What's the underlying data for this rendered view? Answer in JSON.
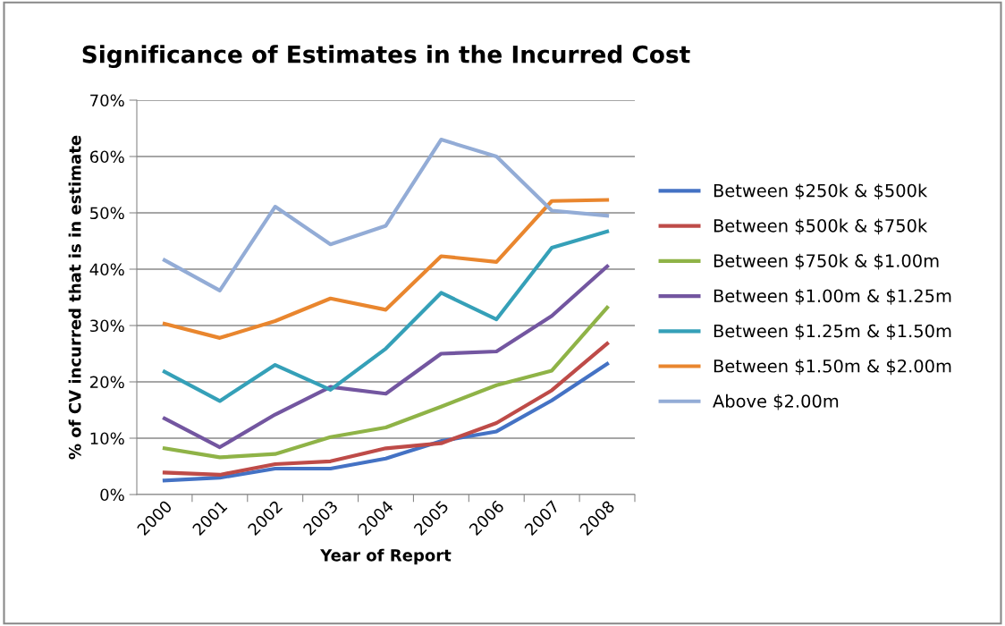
{
  "chart_data": {
    "type": "line",
    "title": "Significance of Estimates in the Incurred Cost",
    "xlabel": "Year of Report",
    "ylabel": "% of CV incurred that is in estimate",
    "categories": [
      "2000",
      "2001",
      "2002",
      "2003",
      "2004",
      "2005",
      "2006",
      "2007",
      "2008"
    ],
    "series": [
      {
        "name": "Between $250k & $500k",
        "color": "#4472c4",
        "values": [
          2.5,
          3,
          4.6,
          4.6,
          6.4,
          9.5,
          11.2,
          16.7,
          23.2
        ]
      },
      {
        "name": "Between $500k & $750k",
        "color": "#be4b48",
        "values": [
          3.9,
          3.5,
          5.4,
          5.9,
          8.2,
          9.1,
          12.7,
          18.5,
          26.8
        ]
      },
      {
        "name": "Between $750k & $1.00m",
        "color": "#8fb347",
        "values": [
          8.2,
          6.6,
          7.2,
          10.2,
          11.9,
          15.6,
          19.4,
          22,
          33.2
        ]
      },
      {
        "name": "Between $1.00m & $1.25m",
        "color": "#7356a0",
        "values": [
          13.5,
          8.4,
          14.2,
          19.1,
          17.9,
          25,
          25.4,
          31.7,
          40.5
        ]
      },
      {
        "name": "Between $1.25m & $1.50m",
        "color": "#35a0b8",
        "values": [
          21.8,
          16.6,
          23,
          18.6,
          25.9,
          35.8,
          31.1,
          43.8,
          46.7
        ]
      },
      {
        "name": "Between $1.50m & $2.00m",
        "color": "#e9862e",
        "values": [
          30.3,
          27.8,
          30.8,
          34.8,
          32.8,
          42.3,
          41.3,
          52.1,
          52.3
        ]
      },
      {
        "name": "Above $2.00m",
        "color": "#93acd6",
        "values": [
          41.6,
          36.2,
          51.1,
          44.4,
          47.7,
          63,
          60,
          50.4,
          49.5
        ]
      }
    ],
    "ylim": [
      0,
      70
    ],
    "yticks": [
      {
        "value": 0,
        "label": "0%"
      },
      {
        "value": 10,
        "label": "10%"
      },
      {
        "value": 20,
        "label": "20%"
      },
      {
        "value": 30,
        "label": "30%"
      },
      {
        "value": 40,
        "label": "40%"
      },
      {
        "value": 50,
        "label": "50%"
      },
      {
        "value": 60,
        "label": "60%"
      },
      {
        "value": 70,
        "label": "70%"
      }
    ],
    "grid": "y",
    "legend": "right",
    "marker": "none",
    "line_style": "solid"
  }
}
